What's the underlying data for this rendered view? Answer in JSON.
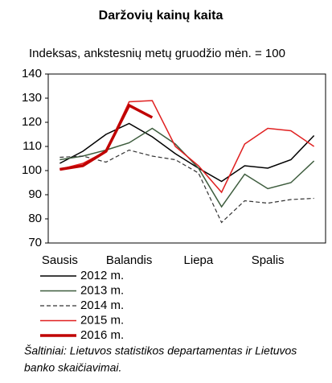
{
  "chart_data": {
    "type": "line",
    "title": "Daržovių kainų kaita",
    "subtitle": "Indeksas, ankstesnių metų gruodžio mėn. = 100",
    "categories": [
      "Sausis",
      null,
      null,
      "Balandis",
      null,
      null,
      "Liepa",
      null,
      null,
      "Spalis",
      null,
      null
    ],
    "series": [
      {
        "name": "2012 m.",
        "color": "#000000",
        "line_style": "solid",
        "line_width": 1.5,
        "values": [
          103,
          108,
          115,
          119.5,
          114,
          107,
          101,
          95.5,
          102,
          101,
          104.5,
          114.5
        ]
      },
      {
        "name": "2013 m.",
        "color": "#3d5c3d",
        "line_style": "solid",
        "line_width": 1.5,
        "values": [
          104.5,
          106,
          108.5,
          111.5,
          117.5,
          111,
          101,
          85,
          98.5,
          92.5,
          95,
          104
        ]
      },
      {
        "name": "2014 m.",
        "color": "#333333",
        "line_style": "dashed",
        "line_width": 1.2,
        "values": [
          105.5,
          106,
          103.5,
          108.5,
          106,
          104.5,
          99,
          78.5,
          87.5,
          86.5,
          88,
          88.5
        ]
      },
      {
        "name": "2015 m.",
        "color": "#e02020",
        "line_style": "solid",
        "line_width": 1.5,
        "values": [
          100.5,
          103,
          108,
          128.5,
          129,
          110,
          102,
          91,
          111,
          117.5,
          116.5,
          110
        ]
      },
      {
        "name": "2016 m.",
        "color": "#c00000",
        "line_style": "solid",
        "line_width": 3.5,
        "values": [
          100.5,
          102,
          108,
          127,
          122,
          null,
          null,
          null,
          null,
          null,
          null,
          null
        ]
      }
    ],
    "ylim": [
      70,
      140
    ],
    "yticks": [
      70,
      80,
      90,
      100,
      110,
      120,
      130,
      140
    ],
    "grid": false,
    "source": [
      "Šaltiniai: Lietuvos statistikos departamentas ir Lietuvos",
      "banko skaičiavimai."
    ]
  }
}
